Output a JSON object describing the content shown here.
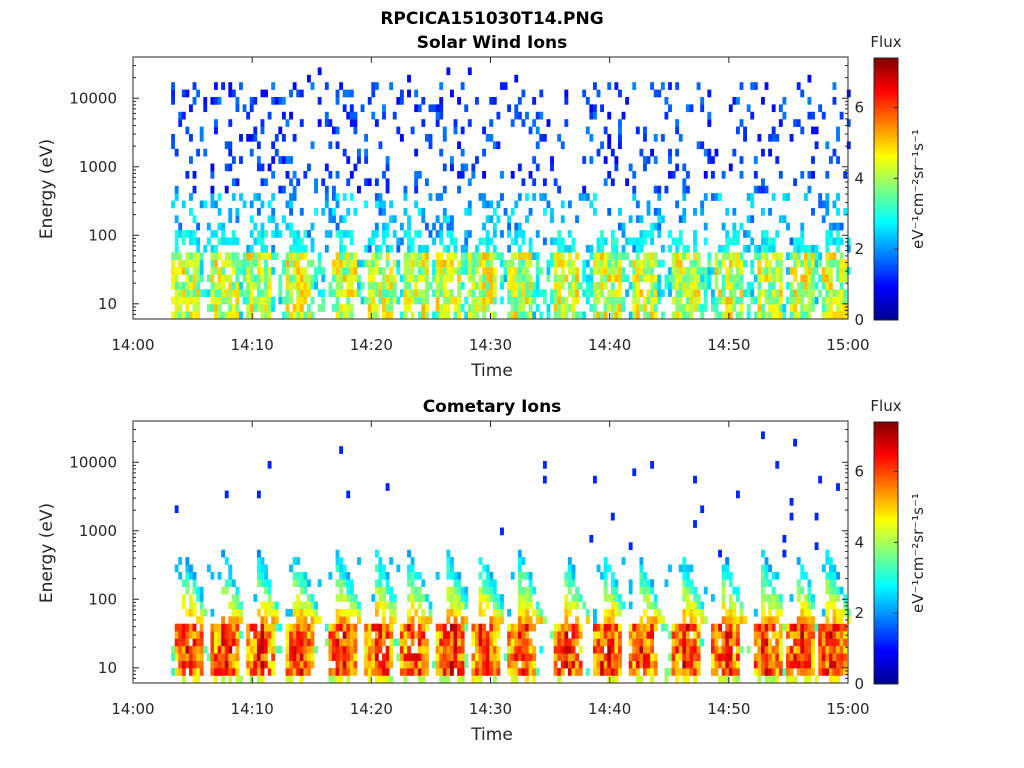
{
  "figure": {
    "title": "RPCICA151030T14.PNG"
  },
  "colors": {
    "colormap": [
      "#00008f",
      "#0000ff",
      "#0080ff",
      "#00ffff",
      "#80ff80",
      "#ffff00",
      "#ff8000",
      "#ff0000",
      "#800000"
    ],
    "axis": "#262626"
  },
  "chart_data": [
    {
      "type": "heatmap",
      "title": "Solar Wind Ions",
      "xlabel": "Time",
      "ylabel": "Energy (eV)",
      "x_ticks": [
        "14:00",
        "14:10",
        "14:20",
        "14:30",
        "14:40",
        "14:50",
        "15:00"
      ],
      "x_range_minutes": [
        0,
        60
      ],
      "y_scale": "log",
      "y_ticks": [
        "10",
        "100",
        "1000",
        "10000"
      ],
      "y_range": [
        6,
        40000
      ],
      "data_start_minute": 3.2,
      "data_end_minute": 60,
      "colorbar": {
        "label": "Flux",
        "units": "eV⁻¹cm⁻²sr⁻¹s⁻¹",
        "ticks": [
          "0",
          "2",
          "4",
          "6"
        ],
        "range": [
          0,
          7.4
        ]
      },
      "pulse_minutes": [
        4.2,
        7.5,
        10.4,
        13.8,
        17.6,
        20.8,
        23.6,
        26.4,
        29.2,
        32.4,
        36.2,
        39.6,
        42.8,
        46.2,
        49.8,
        53.2,
        56.0,
        58.6
      ],
      "features": {
        "low_band_flux": 4.2,
        "high_energy_scatter_flux": 1.5,
        "peak_energy_eV": 25
      }
    },
    {
      "type": "heatmap",
      "title": "Cometary Ions",
      "xlabel": "Time",
      "ylabel": "Energy (eV)",
      "x_ticks": [
        "14:00",
        "14:10",
        "14:20",
        "14:30",
        "14:40",
        "14:50",
        "15:00"
      ],
      "x_range_minutes": [
        0,
        60
      ],
      "y_scale": "log",
      "y_ticks": [
        "10",
        "100",
        "1000",
        "10000"
      ],
      "y_range": [
        6,
        40000
      ],
      "data_start_minute": 3.2,
      "data_end_minute": 60,
      "colorbar": {
        "label": "Flux",
        "units": "eV⁻¹cm⁻²sr⁻¹s⁻¹",
        "ticks": [
          "0",
          "2",
          "4",
          "6"
        ],
        "range": [
          0,
          7.4
        ]
      },
      "pulse_minutes": [
        4.4,
        7.6,
        10.6,
        13.8,
        17.4,
        20.6,
        23.4,
        26.6,
        29.4,
        32.6,
        36.4,
        39.6,
        42.6,
        46.2,
        49.6,
        53.0,
        55.8,
        58.4
      ],
      "features": {
        "low_band_flux": 6.2,
        "peak_energy_eV": 25,
        "upper_reach_eV": 700
      }
    }
  ]
}
